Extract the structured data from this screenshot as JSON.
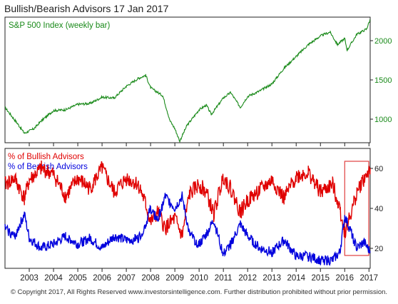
{
  "chart_title": "Bullish/Bearish Advisors  17 Jan 2017",
  "copyright": "© Copyright 2017, All Rights Reserved www.investorsintelligence.com. Further distribution prohibited without prior permission.",
  "colors": {
    "sp500": "#1a8a1a",
    "bullish": "#e00000",
    "bearish": "#0000dd",
    "highlight": "#e04040",
    "frame": "#222222"
  },
  "chart_data": [
    {
      "type": "line",
      "title": "S&P 500 Index (weekly bar)",
      "ylim": [
        700,
        2300
      ],
      "yticks": [
        1000,
        1500,
        2000
      ],
      "x": [
        2002.0,
        2002.5,
        2002.8,
        2003.2,
        2003.5,
        2004.0,
        2004.5,
        2005.0,
        2005.5,
        2006.0,
        2006.5,
        2007.0,
        2007.5,
        2007.8,
        2008.0,
        2008.5,
        2008.8,
        2009.0,
        2009.2,
        2009.5,
        2010.0,
        2010.3,
        2010.5,
        2011.0,
        2011.3,
        2011.7,
        2012.0,
        2012.5,
        2013.0,
        2013.5,
        2014.0,
        2014.5,
        2015.0,
        2015.4,
        2015.7,
        2016.0,
        2016.1,
        2016.5,
        2016.9,
        2017.05
      ],
      "series": [
        {
          "name": "S&P 500 Index",
          "values": [
            1150,
            950,
            820,
            880,
            980,
            1110,
            1120,
            1190,
            1200,
            1280,
            1270,
            1420,
            1520,
            1560,
            1400,
            1300,
            980,
            880,
            720,
            920,
            1120,
            1180,
            1060,
            1270,
            1340,
            1150,
            1290,
            1360,
            1450,
            1650,
            1800,
            1950,
            2060,
            2110,
            1950,
            2030,
            1880,
            2080,
            2150,
            2270
          ]
        }
      ]
    },
    {
      "type": "line",
      "ylim": [
        10,
        70
      ],
      "yticks": [
        20,
        40,
        60
      ],
      "x": [
        2002.0,
        2002.4,
        2002.8,
        2003.0,
        2003.5,
        2004.0,
        2004.5,
        2005.0,
        2005.5,
        2006.0,
        2006.5,
        2007.0,
        2007.5,
        2007.8,
        2008.0,
        2008.3,
        2008.6,
        2009.0,
        2009.3,
        2009.6,
        2010.0,
        2010.3,
        2010.6,
        2011.0,
        2011.3,
        2011.7,
        2012.0,
        2012.5,
        2013.0,
        2013.5,
        2014.0,
        2014.5,
        2015.0,
        2015.5,
        2015.8,
        2016.0,
        2016.2,
        2016.5,
        2016.8,
        2017.05
      ],
      "series": [
        {
          "name": "% of Bullish Advisors",
          "values": [
            52,
            55,
            45,
            54,
            60,
            57,
            46,
            55,
            50,
            60,
            48,
            55,
            52,
            42,
            33,
            38,
            30,
            35,
            26,
            47,
            52,
            48,
            37,
            56,
            50,
            38,
            44,
            49,
            54,
            45,
            56,
            58,
            48,
            52,
            40,
            28,
            35,
            48,
            55,
            60
          ]
        },
        {
          "name": "% of Bearish Advisors",
          "values": [
            30,
            26,
            37,
            25,
            20,
            22,
            26,
            22,
            25,
            20,
            26,
            24,
            25,
            32,
            40,
            34,
            46,
            40,
            46,
            27,
            22,
            27,
            34,
            17,
            22,
            32,
            26,
            20,
            18,
            24,
            16,
            16,
            14,
            14,
            18,
            36,
            30,
            20,
            23,
            18
          ]
        }
      ],
      "annotations": [
        "% of Bullish Advisors",
        "% of Bearish Advisors"
      ],
      "highlight_range": [
        2016.0,
        2017.05
      ]
    }
  ],
  "x_axis": {
    "xlim": [
      2002.0,
      2017.05
    ],
    "tick_labels": [
      "2003",
      "2004",
      "2005",
      "2006",
      "2007",
      "2008",
      "2009",
      "2010",
      "2011",
      "2012",
      "2013",
      "2014",
      "2015",
      "2016",
      "2017"
    ]
  }
}
